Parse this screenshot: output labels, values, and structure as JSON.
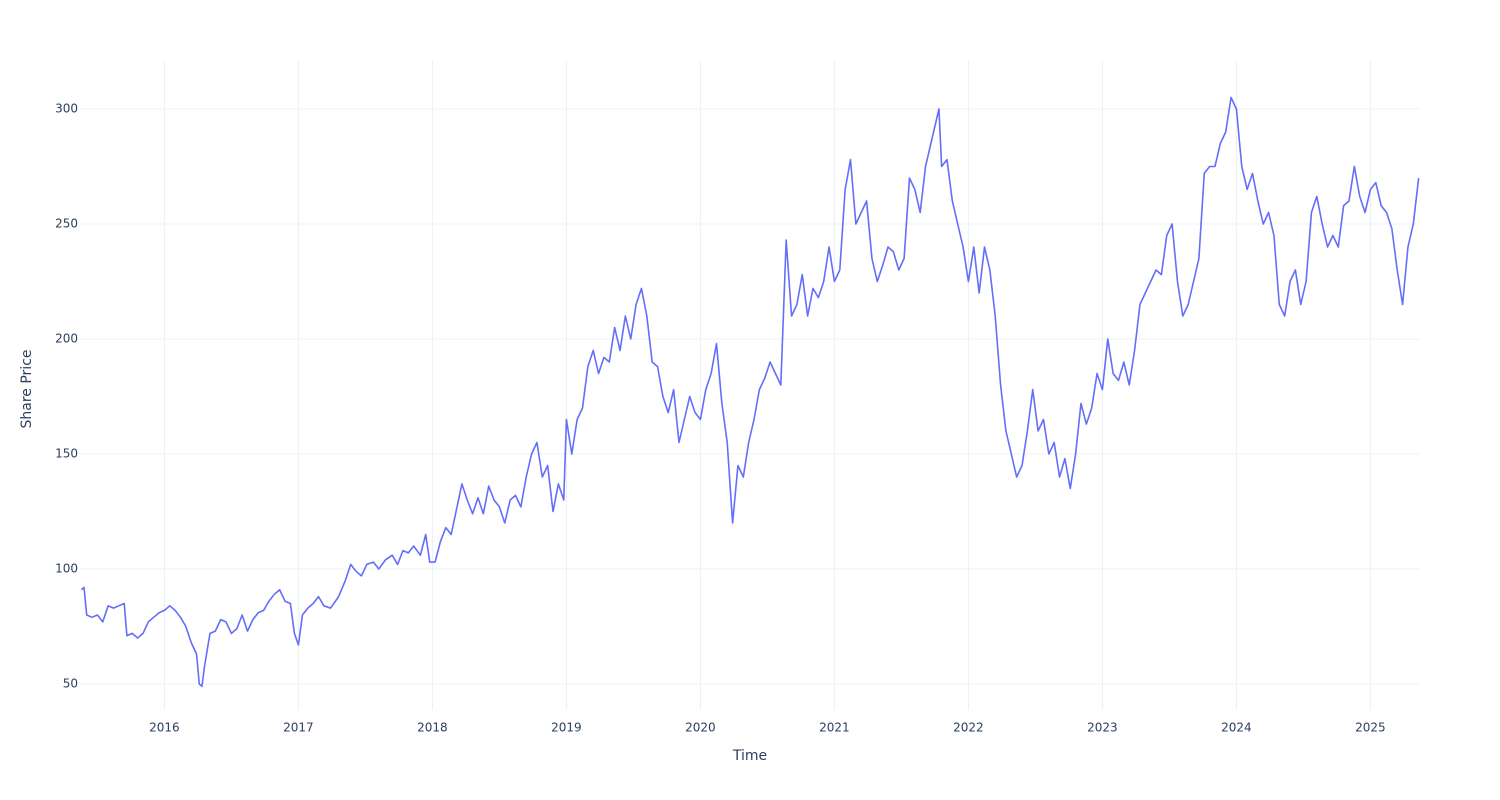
{
  "chart_data": {
    "type": "line",
    "x_label": "Time",
    "y_label": "Share Price",
    "color": "#636efa",
    "grid": true,
    "xlim": [
      2015.37,
      2025.37
    ],
    "ylim": [
      38.7,
      321.3
    ],
    "xticks": [
      2016,
      2017,
      2018,
      2019,
      2020,
      2021,
      2022,
      2023,
      2024,
      2025
    ],
    "yticks": [
      50,
      100,
      150,
      200,
      250,
      300
    ],
    "x": [
      2015.38,
      2015.4,
      2015.42,
      2015.46,
      2015.5,
      2015.54,
      2015.58,
      2015.62,
      2015.66,
      2015.7,
      2015.72,
      2015.76,
      2015.8,
      2015.84,
      2015.88,
      2015.92,
      2015.96,
      2016.0,
      2016.04,
      2016.08,
      2016.12,
      2016.16,
      2016.2,
      2016.24,
      2016.26,
      2016.28,
      2016.3,
      2016.34,
      2016.38,
      2016.42,
      2016.46,
      2016.5,
      2016.54,
      2016.58,
      2016.62,
      2016.66,
      2016.7,
      2016.74,
      2016.78,
      2016.82,
      2016.86,
      2016.9,
      2016.94,
      2016.97,
      2017.0,
      2017.03,
      2017.07,
      2017.11,
      2017.15,
      2017.19,
      2017.24,
      2017.3,
      2017.35,
      2017.39,
      2017.43,
      2017.47,
      2017.51,
      2017.56,
      2017.6,
      2017.65,
      2017.7,
      2017.74,
      2017.78,
      2017.82,
      2017.86,
      2017.91,
      2017.95,
      2017.98,
      2018.02,
      2018.06,
      2018.1,
      2018.14,
      2018.18,
      2018.22,
      2018.26,
      2018.3,
      2018.34,
      2018.38,
      2018.42,
      2018.46,
      2018.5,
      2018.54,
      2018.58,
      2018.62,
      2018.66,
      2018.7,
      2018.74,
      2018.78,
      2018.82,
      2018.86,
      2018.9,
      2018.94,
      2018.98,
      2019.0,
      2019.04,
      2019.08,
      2019.12,
      2019.16,
      2019.2,
      2019.24,
      2019.28,
      2019.32,
      2019.36,
      2019.4,
      2019.44,
      2019.48,
      2019.52,
      2019.56,
      2019.6,
      2019.64,
      2019.68,
      2019.72,
      2019.76,
      2019.8,
      2019.84,
      2019.88,
      2019.92,
      2019.96,
      2020.0,
      2020.04,
      2020.08,
      2020.12,
      2020.16,
      2020.2,
      2020.24,
      2020.28,
      2020.32,
      2020.36,
      2020.4,
      2020.44,
      2020.48,
      2020.52,
      2020.56,
      2020.6,
      2020.64,
      2020.68,
      2020.72,
      2020.76,
      2020.8,
      2020.84,
      2020.88,
      2020.92,
      2020.96,
      2021.0,
      2021.04,
      2021.08,
      2021.12,
      2021.16,
      2021.2,
      2021.24,
      2021.28,
      2021.32,
      2021.36,
      2021.4,
      2021.44,
      2021.48,
      2021.52,
      2021.56,
      2021.6,
      2021.64,
      2021.68,
      2021.72,
      2021.78,
      2021.8,
      2021.84,
      2021.88,
      2021.92,
      2021.96,
      2022.0,
      2022.04,
      2022.08,
      2022.12,
      2022.16,
      2022.2,
      2022.24,
      2022.28,
      2022.32,
      2022.36,
      2022.4,
      2022.44,
      2022.48,
      2022.52,
      2022.56,
      2022.6,
      2022.64,
      2022.68,
      2022.72,
      2022.76,
      2022.8,
      2022.84,
      2022.88,
      2022.92,
      2022.96,
      2023.0,
      2023.04,
      2023.08,
      2023.12,
      2023.16,
      2023.2,
      2023.24,
      2023.28,
      2023.32,
      2023.36,
      2023.4,
      2023.44,
      2023.48,
      2023.52,
      2023.56,
      2023.6,
      2023.64,
      2023.68,
      2023.72,
      2023.76,
      2023.8,
      2023.84,
      2023.88,
      2023.92,
      2023.96,
      2024.0,
      2024.04,
      2024.08,
      2024.12,
      2024.16,
      2024.2,
      2024.24,
      2024.28,
      2024.32,
      2024.36,
      2024.4,
      2024.44,
      2024.48,
      2024.52,
      2024.56,
      2024.6,
      2024.64,
      2024.68,
      2024.72,
      2024.76,
      2024.8,
      2024.84,
      2024.88,
      2024.92,
      2024.96,
      2025.0,
      2025.04,
      2025.08,
      2025.12,
      2025.16,
      2025.2,
      2025.24,
      2025.28,
      2025.32,
      2025.36
    ],
    "values": [
      91,
      92,
      80,
      79,
      80,
      77,
      84,
      83,
      84,
      85,
      71,
      72,
      70,
      72,
      77,
      79,
      81,
      82,
      84,
      82,
      79,
      75,
      68,
      63,
      50,
      49,
      58,
      72,
      73,
      78,
      77,
      72,
      74,
      80,
      73,
      78,
      81,
      82,
      86,
      89,
      91,
      86,
      85,
      72,
      67,
      80,
      83,
      85,
      88,
      84,
      83,
      88,
      95,
      102,
      99,
      97,
      102,
      103,
      100,
      104,
      106,
      102,
      108,
      107,
      110,
      106,
      115,
      103,
      103,
      112,
      118,
      115,
      126,
      137,
      130,
      124,
      131,
      124,
      136,
      130,
      127,
      120,
      130,
      132,
      127,
      140,
      150,
      155,
      140,
      145,
      125,
      137,
      130,
      165,
      150,
      165,
      170,
      188,
      195,
      185,
      192,
      190,
      205,
      195,
      210,
      200,
      215,
      222,
      210,
      190,
      188,
      175,
      168,
      178,
      155,
      165,
      175,
      168,
      165,
      178,
      185,
      198,
      172,
      155,
      120,
      145,
      140,
      155,
      165,
      178,
      183,
      190,
      185,
      180,
      243,
      210,
      215,
      228,
      210,
      222,
      218,
      225,
      240,
      225,
      230,
      265,
      278,
      250,
      255,
      260,
      235,
      225,
      232,
      240,
      238,
      230,
      235,
      270,
      265,
      255,
      275,
      285,
      300,
      275,
      278,
      260,
      250,
      240,
      225,
      240,
      220,
      240,
      230,
      210,
      180,
      160,
      150,
      140,
      145,
      160,
      178,
      160,
      165,
      150,
      155,
      140,
      148,
      135,
      150,
      172,
      163,
      170,
      185,
      178,
      200,
      185,
      182,
      190,
      180,
      195,
      215,
      220,
      225,
      230,
      228,
      245,
      250,
      225,
      210,
      215,
      225,
      235,
      272,
      275,
      275,
      285,
      290,
      305,
      300,
      275,
      265,
      272,
      260,
      250,
      255,
      245,
      215,
      210,
      225,
      230,
      215,
      225,
      255,
      262,
      250,
      240,
      245,
      240,
      258,
      260,
      275,
      262,
      255,
      265,
      268,
      258,
      255,
      248,
      230,
      215,
      240,
      250,
      270
    ]
  }
}
